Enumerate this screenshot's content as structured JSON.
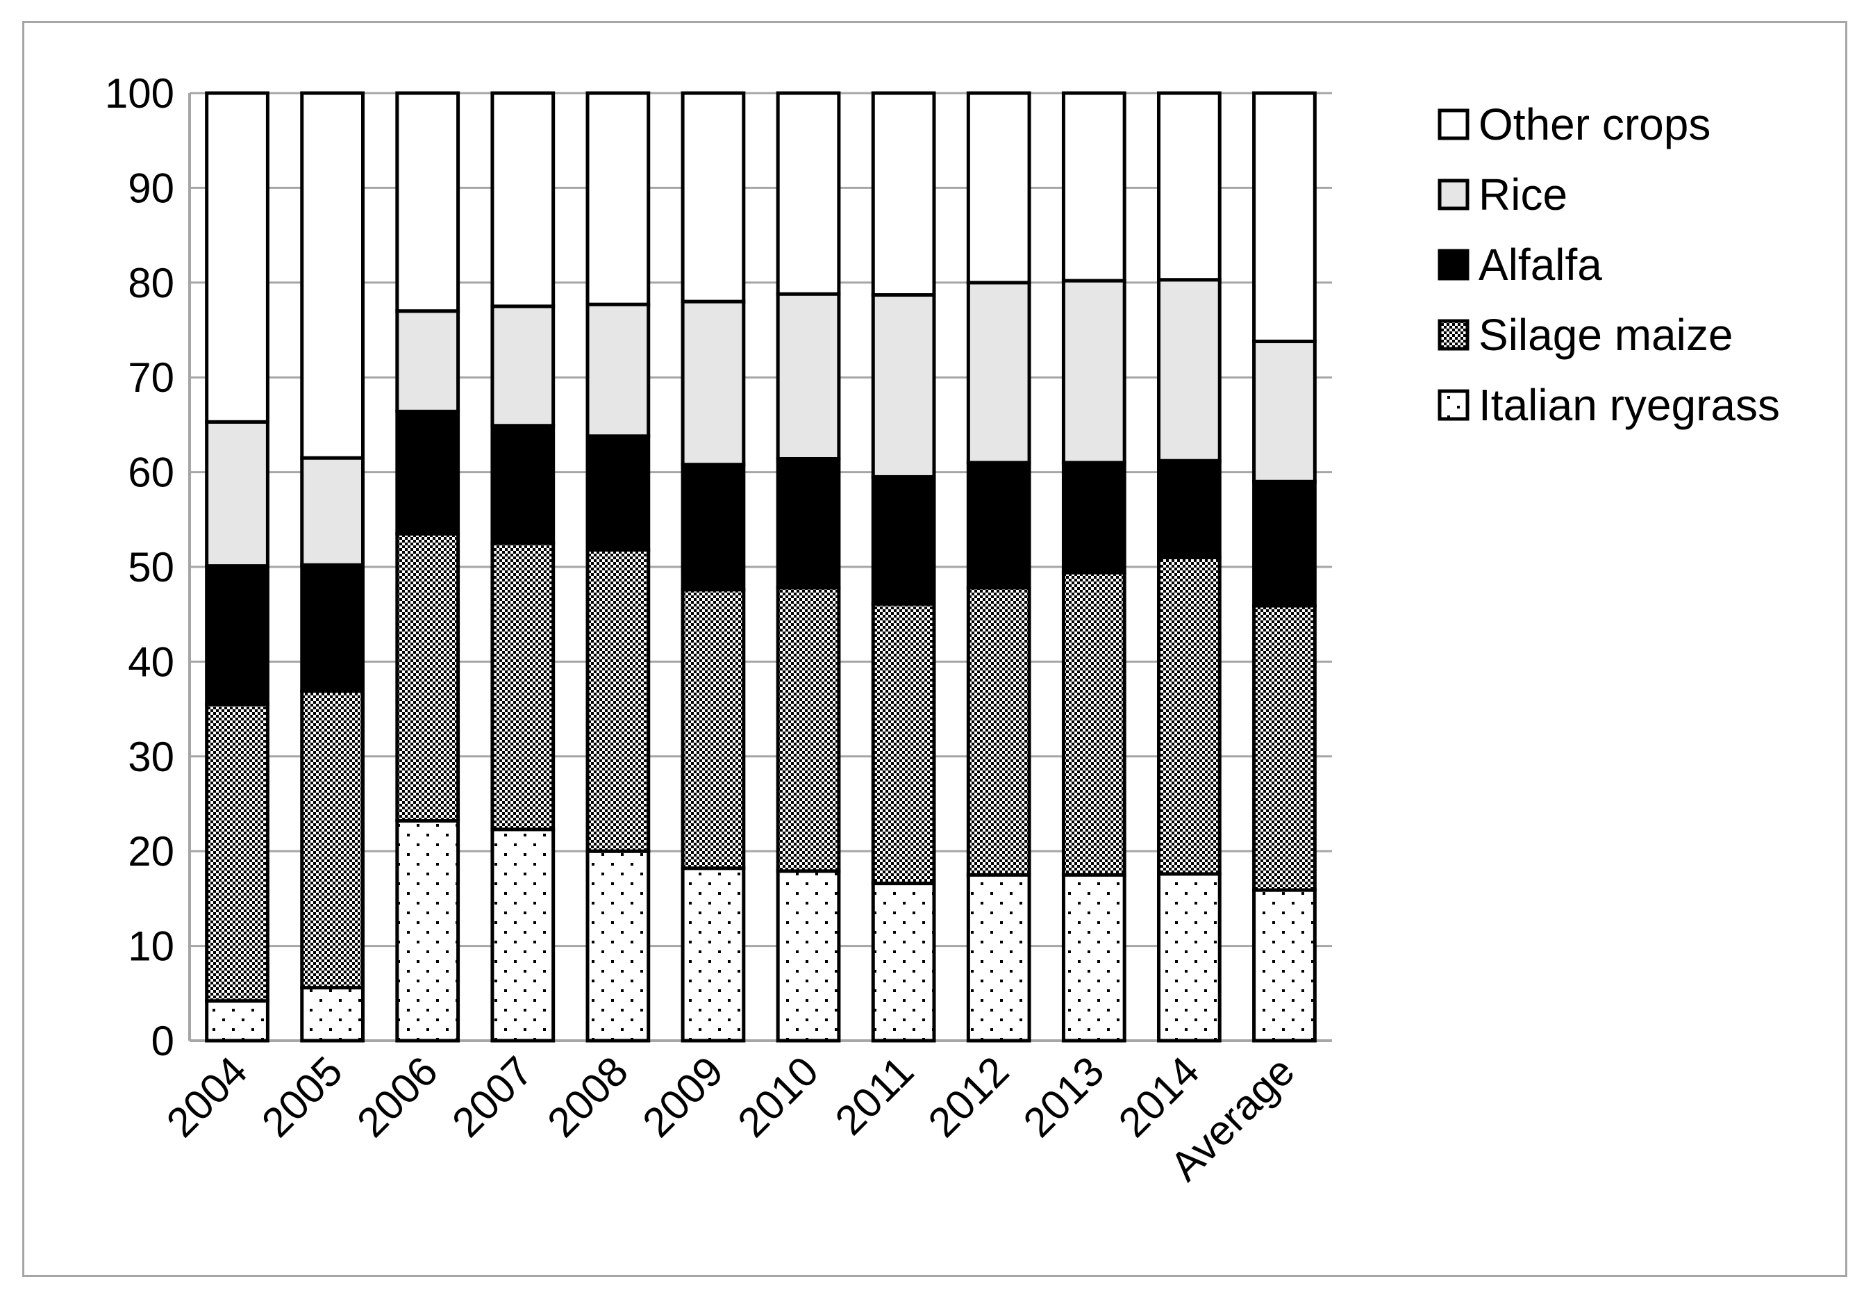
{
  "chart_data": {
    "type": "bar",
    "stacked": true,
    "categories": [
      "2004",
      "2005",
      "2006",
      "2007",
      "2008",
      "2009",
      "2010",
      "2011",
      "2012",
      "2013",
      "2014",
      "Average"
    ],
    "series": [
      {
        "name": "Italian ryegrass",
        "pattern": "dots",
        "values": [
          4.2,
          5.6,
          23.2,
          22.3,
          20.0,
          18.2,
          17.9,
          16.6,
          17.5,
          17.5,
          17.6,
          15.9
        ]
      },
      {
        "name": "Silage maize",
        "pattern": "checker",
        "values": [
          31.3,
          31.3,
          30.3,
          30.2,
          31.8,
          29.4,
          29.9,
          29.5,
          30.3,
          31.9,
          33.4,
          30.0
        ]
      },
      {
        "name": "Alfalfa",
        "pattern": "solid-black",
        "values": [
          14.6,
          13.3,
          12.9,
          12.4,
          12.0,
          13.2,
          13.6,
          13.4,
          13.2,
          11.6,
          10.2,
          13.1
        ]
      },
      {
        "name": "Rice",
        "pattern": "solid-lightgray",
        "values": [
          15.2,
          11.3,
          10.6,
          12.6,
          13.9,
          17.2,
          17.4,
          19.2,
          19.0,
          19.2,
          19.1,
          14.8
        ]
      },
      {
        "name": "Other crops",
        "pattern": "white",
        "values": [
          34.7,
          38.5,
          23.0,
          22.5,
          22.3,
          22.0,
          21.2,
          21.3,
          20.0,
          19.8,
          19.7,
          26.2
        ]
      }
    ],
    "ylim": [
      0,
      100
    ],
    "yticks": [
      "0",
      "10",
      "20",
      "30",
      "40",
      "50",
      "60",
      "70",
      "80",
      "90",
      "100"
    ],
    "grid": true,
    "legend_position": "right",
    "legend_order": [
      "Other crops",
      "Rice",
      "Alfalfa",
      "Silage maize",
      "Italian ryegrass"
    ],
    "colors": {
      "stroke": "#000000",
      "rice": "#e6e6e6",
      "alfalfa": "#000000",
      "grid": "#a6a6a6",
      "axis": "#a6a6a6"
    }
  }
}
